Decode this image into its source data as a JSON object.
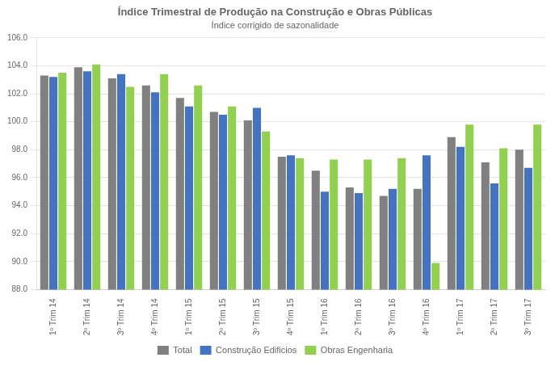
{
  "chart_data": {
    "type": "bar",
    "title": "Índice Trimestral de Produção na Construção e Obras Públicas",
    "subtitle": "Índice corrigido de sazonalidade",
    "categories": [
      "1º Trim 14",
      "2º Trim 14",
      "3º Trim 14",
      "4º Trim 14",
      "1º Trim 15",
      "2º Trim 15",
      "3º Trim 15",
      "4º Trim 15",
      "1º Trim 16",
      "2º Trim 16",
      "3º Trim 16",
      "4º Trim 16",
      "1º Trim 17",
      "2º Trim 17",
      "3º Trim 17"
    ],
    "series": [
      {
        "name": "Total",
        "color": "#808080",
        "values": [
          103.3,
          103.9,
          103.1,
          102.6,
          101.7,
          100.7,
          100.1,
          97.5,
          96.5,
          95.3,
          94.7,
          95.2,
          98.9,
          97.1,
          98.0
        ]
      },
      {
        "name": "Construção Edificios",
        "color": "#4472C4",
        "values": [
          103.2,
          103.6,
          103.4,
          102.1,
          101.1,
          100.5,
          101.0,
          97.6,
          95.0,
          94.9,
          95.2,
          97.6,
          98.2,
          95.6,
          96.7
        ]
      },
      {
        "name": "Obras Engenharia",
        "color": "#92D050",
        "values": [
          103.5,
          104.1,
          102.5,
          103.4,
          102.6,
          101.1,
          99.3,
          97.4,
          97.3,
          97.3,
          97.4,
          89.9,
          99.8,
          98.1,
          99.8
        ]
      }
    ],
    "ylim": [
      88.0,
      106.0
    ],
    "yticks": [
      {
        "value": 88.0,
        "label": "88.0"
      },
      {
        "value": 90.0,
        "label": "90.0"
      },
      {
        "value": 92.0,
        "label": "92.0"
      },
      {
        "value": 94.0,
        "label": "94.0"
      },
      {
        "value": 96.0,
        "label": "96.0"
      },
      {
        "value": 98.0,
        "label": "98.0"
      },
      {
        "value": 100.0,
        "label": "100.0"
      },
      {
        "value": 102.0,
        "label": "102.0"
      },
      {
        "value": 104.0,
        "label": "104.0"
      },
      {
        "value": 106.0,
        "label": "106.0"
      }
    ],
    "grid": true,
    "legend": "bottom"
  }
}
